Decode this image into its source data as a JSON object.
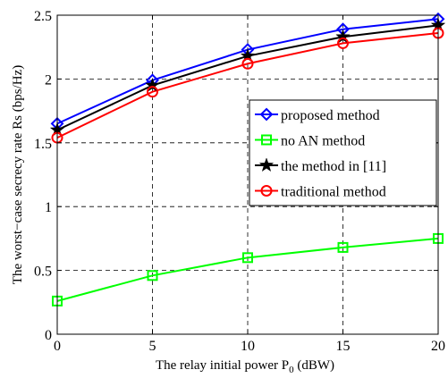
{
  "chart_data": {
    "type": "line",
    "title": "",
    "xlabel": "The relay initial power P",
    "xlabel_subscript": "0",
    "xlabel_unit": " (dBW)",
    "ylabel": "The worst−case secrecy rate Rs (bps/Hz)",
    "xlim": [
      0,
      20
    ],
    "ylim": [
      0,
      2.5
    ],
    "xticks": [
      0,
      5,
      10,
      15,
      20
    ],
    "yticks": [
      0,
      0.5,
      1,
      1.5,
      2,
      2.5
    ],
    "xtick_labels": [
      "0",
      "5",
      "10",
      "15",
      "20"
    ],
    "ytick_labels": [
      "0",
      "0.5",
      "1",
      "1.5",
      "2",
      "2.5"
    ],
    "grid": true,
    "grid_style": "dashed",
    "legend_position": "center-right",
    "x": [
      0,
      5,
      10,
      15,
      20
    ],
    "series": [
      {
        "name": "proposed method",
        "values": [
          1.65,
          1.99,
          2.23,
          2.39,
          2.47
        ],
        "color": "#0000ff",
        "marker": "diamond"
      },
      {
        "name": "no AN method",
        "values": [
          0.26,
          0.46,
          0.6,
          0.68,
          0.75
        ],
        "color": "#00ff00",
        "marker": "square"
      },
      {
        "name": "the method in [11]",
        "values": [
          1.6,
          1.95,
          2.18,
          2.33,
          2.42
        ],
        "color": "#000000",
        "marker": "star"
      },
      {
        "name": "traditional method",
        "values": [
          1.54,
          1.9,
          2.12,
          2.28,
          2.36
        ],
        "color": "#ff0000",
        "marker": "circle"
      }
    ]
  }
}
